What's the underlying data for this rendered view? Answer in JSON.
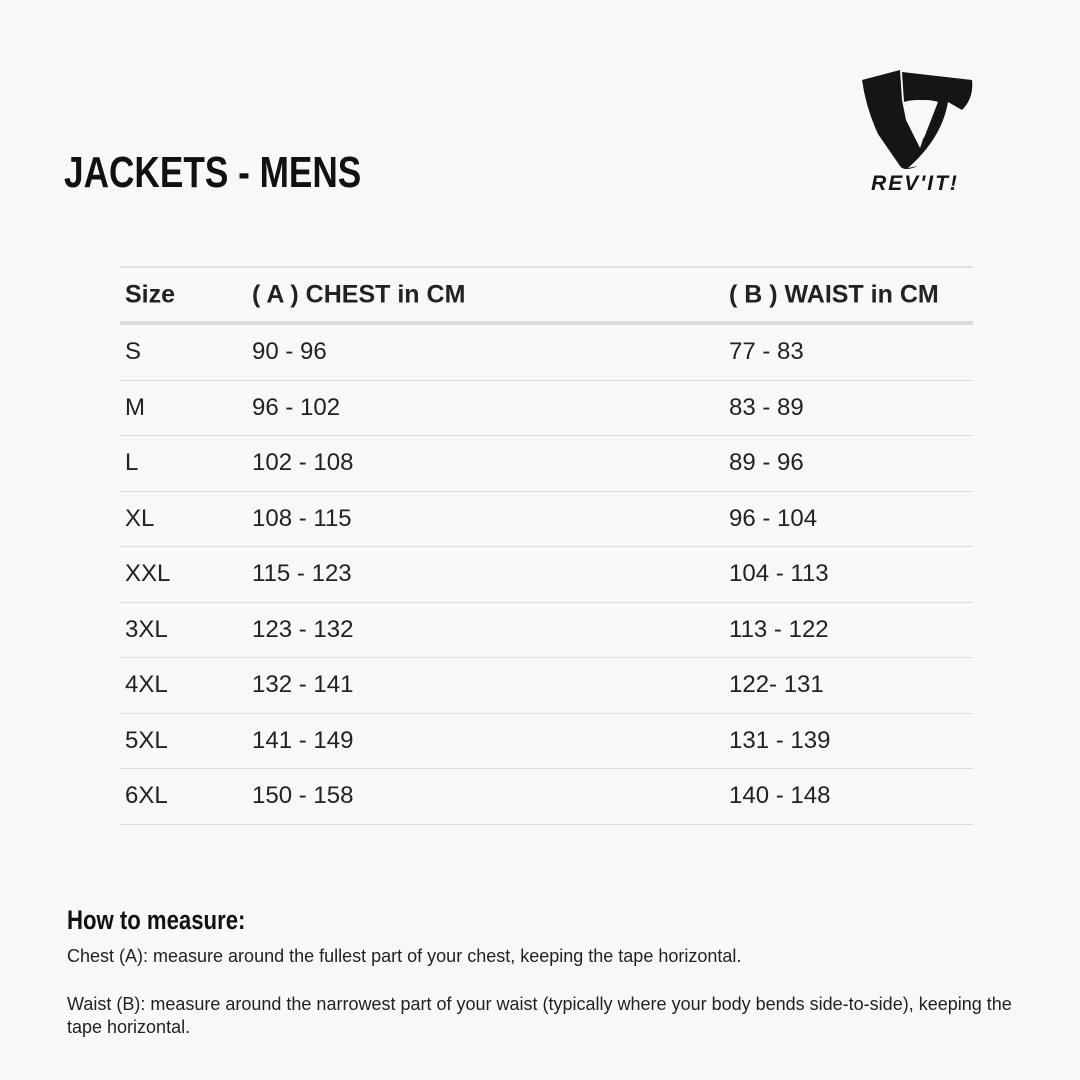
{
  "title": "JACKETS - MENS",
  "brand": {
    "name": "REV'IT!",
    "logo_icon": "revit-shield-logo"
  },
  "table": {
    "headers": [
      "Size",
      "( A ) CHEST in CM",
      "( B ) WAIST in CM"
    ],
    "rows": [
      [
        "S",
        "90 - 96",
        "77 - 83"
      ],
      [
        "M",
        "96 - 102",
        "83 - 89"
      ],
      [
        "L",
        "102 - 108",
        "89 - 96"
      ],
      [
        "XL",
        "108 - 115",
        "96 - 104"
      ],
      [
        "XXL",
        "115 - 123",
        "104 - 113"
      ],
      [
        "3XL",
        "123 - 132",
        "113 - 122"
      ],
      [
        "4XL",
        "132 - 141",
        "122- 131"
      ],
      [
        "5XL",
        "141 - 149",
        "131 - 139"
      ],
      [
        "6XL",
        "150 - 158",
        "140 - 148"
      ]
    ]
  },
  "howto": {
    "heading": "How to measure:",
    "chest": "Chest (A): measure around the fullest part of your chest, keeping the tape horizontal.",
    "waist": "Waist (B): measure around the narrowest part of your waist (typically where your body bends side-to-side), keeping the tape horizontal."
  }
}
